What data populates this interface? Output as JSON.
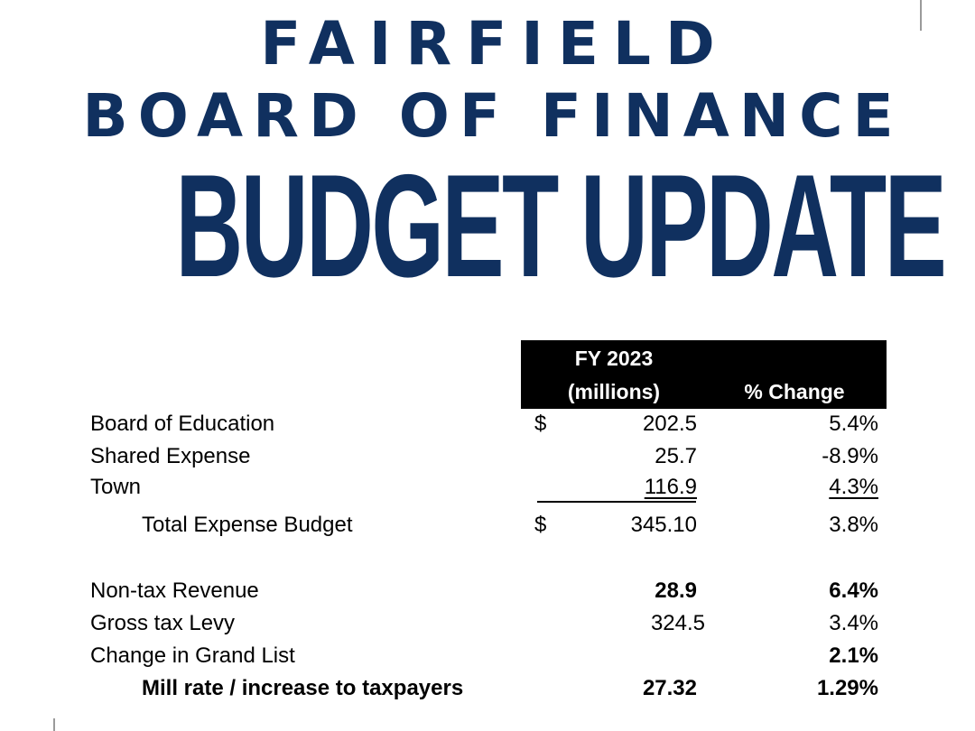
{
  "header": {
    "line1": "FAIRFIELD",
    "line2": "BOARD OF FINANCE",
    "line3": "BUDGET UPDATE",
    "brand_color": "#10305f"
  },
  "table": {
    "col_fy_line1": "FY 2023",
    "col_fy_line2": "(millions)",
    "col_change": "% Change",
    "rows": [
      {
        "label": "Board of Education",
        "dollar": "$",
        "amount": "202.5",
        "change": "5.4%"
      },
      {
        "label": "Shared Expense",
        "dollar": "",
        "amount": "25.7",
        "change": "-8.9%"
      },
      {
        "label": "Town",
        "dollar": "",
        "amount": "116.9",
        "change": "4.3%"
      },
      {
        "label": "Total Expense Budget",
        "dollar": "$",
        "amount": "345.10",
        "change": "3.8%"
      },
      {
        "label": "Non-tax Revenue",
        "dollar": "",
        "amount": "28.9",
        "change": "6.4%"
      },
      {
        "label": "Gross tax Levy",
        "dollar": "",
        "amount": "324.5",
        "change": "3.4%"
      },
      {
        "label": "Change in Grand List",
        "dollar": "",
        "amount": "",
        "change": "2.1%"
      },
      {
        "label": "Mill rate / increase to taxpayers",
        "dollar": "",
        "amount": "27.32",
        "change": "1.29%"
      }
    ]
  }
}
